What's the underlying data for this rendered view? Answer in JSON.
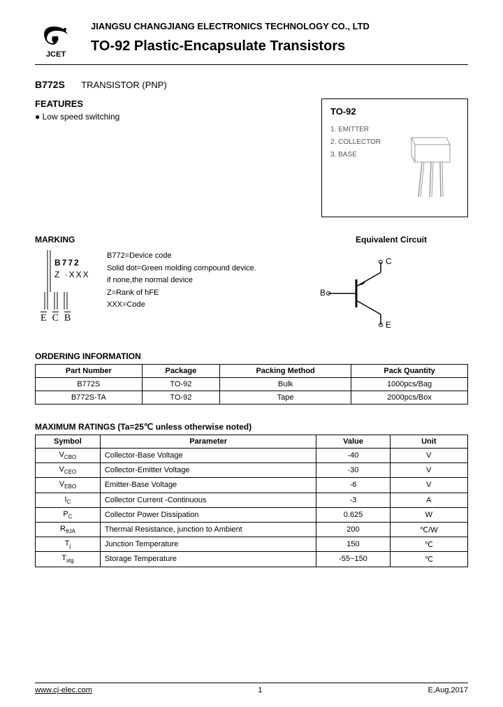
{
  "header": {
    "logo_text": "JCET",
    "company": "JIANGSU CHANGJIANG ELECTRONICS TECHNOLOGY CO., LTD",
    "title": "TO-92 Plastic-Encapsulate Transistors"
  },
  "part": {
    "number": "B772S",
    "type": "TRANSISTOR (PNP)"
  },
  "features": {
    "heading": "FEATURES",
    "items": [
      "Low speed switching"
    ]
  },
  "package": {
    "name": "TO-92",
    "pins": [
      "1. EMITTER",
      "2. COLLECTOR",
      "3. BASE"
    ]
  },
  "marking": {
    "heading": "MARKING",
    "line1": "B772",
    "line2": "Z ·XXX",
    "pinlabels": [
      "E",
      "C",
      "B"
    ],
    "desc": [
      "B772=Device code",
      "Solid dot=Green molding compound device.",
      "if none,the normal device",
      "Z=Rank of hFE",
      "XXX=Code"
    ]
  },
  "equiv": {
    "heading": "Equivalent Circuit",
    "terminals": {
      "c": "C",
      "b": "B",
      "e": "E"
    }
  },
  "ordering": {
    "heading": "ORDERING INFORMATION",
    "columns": [
      "Part Number",
      "Package",
      "Packing Method",
      "Pack Quantity"
    ],
    "rows": [
      [
        "B772S",
        "TO-92",
        "Bulk",
        "1000pcs/Bag"
      ],
      [
        "B772S-TA",
        "TO-92",
        "Tape",
        "2000pcs/Box"
      ]
    ]
  },
  "ratings": {
    "heading": "MAXIMUM RATINGS (Ta=25℃ unless otherwise noted)",
    "columns": [
      "Symbol",
      "Parameter",
      "Value",
      "Unit"
    ],
    "rows": [
      {
        "sym": "V",
        "sub": "CBO",
        "param": "Collector-Base Voltage",
        "value": "-40",
        "unit": "V"
      },
      {
        "sym": "V",
        "sub": "CEO",
        "param": "Collector-Emitter Voltage",
        "value": "-30",
        "unit": "V"
      },
      {
        "sym": "V",
        "sub": "EBO",
        "param": "Emitter-Base Voltage",
        "value": "-6",
        "unit": "V"
      },
      {
        "sym": "I",
        "sub": "C",
        "param": "Collector Current -Continuous",
        "value": "-3",
        "unit": "A"
      },
      {
        "sym": "P",
        "sub": "C",
        "param": "Collector Power Dissipation",
        "value": "0.625",
        "unit": "W"
      },
      {
        "sym": "R",
        "sub": "θJA",
        "param": "Thermal Resistance, junction to Ambient",
        "value": "200",
        "unit": "℃/W"
      },
      {
        "sym": "T",
        "sub": "j",
        "param": "Junction Temperature",
        "value": "150",
        "unit": "℃"
      },
      {
        "sym": "T",
        "sub": "stg",
        "param": "Storage Temperature",
        "value": "-55~150",
        "unit": "℃"
      }
    ]
  },
  "footer": {
    "url": "www.cj-elec.com",
    "page": "1",
    "rev": "E,Aug,2017"
  },
  "colors": {
    "text": "#000000",
    "border": "#000000",
    "bg": "#ffffff",
    "pin_text": "#666666"
  }
}
